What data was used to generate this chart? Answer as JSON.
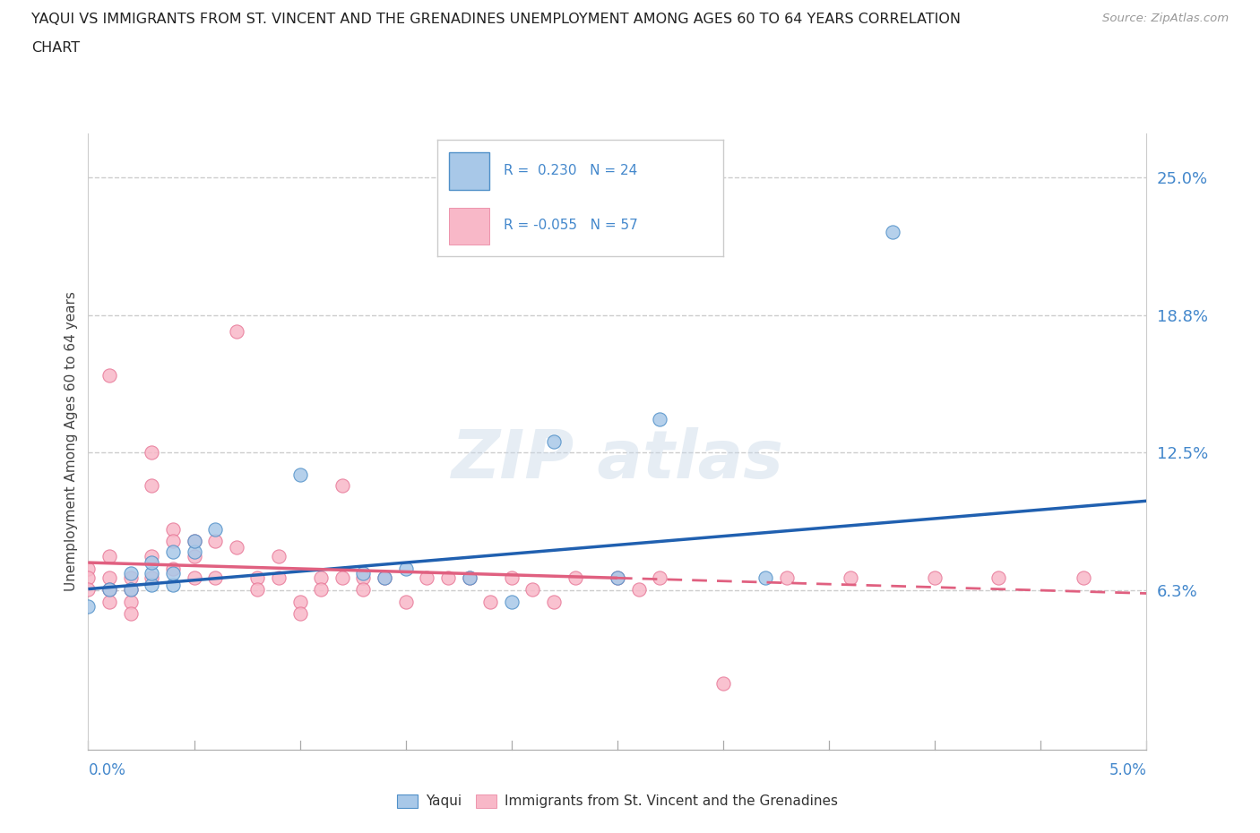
{
  "title_line1": "YAQUI VS IMMIGRANTS FROM ST. VINCENT AND THE GRENADINES UNEMPLOYMENT AMONG AGES 60 TO 64 YEARS CORRELATION",
  "title_line2": "CHART",
  "source": "Source: ZipAtlas.com",
  "ylabel": "Unemployment Among Ages 60 to 64 years",
  "yticks": [
    0.0,
    0.0625,
    0.125,
    0.1875,
    0.25
  ],
  "ytick_labels": [
    "",
    "6.3%",
    "12.5%",
    "18.8%",
    "25.0%"
  ],
  "xlim": [
    0.0,
    0.05
  ],
  "ylim": [
    -0.01,
    0.27
  ],
  "legend_r1": "R =  0.230",
  "legend_n1": "N = 24",
  "legend_r2": "R = -0.055",
  "legend_n2": "N = 57",
  "yaqui_color": "#a8c8e8",
  "immigrants_color": "#f8b8c8",
  "yaqui_edge_color": "#5090c8",
  "immigrants_edge_color": "#e87898",
  "yaqui_line_color": "#2060b0",
  "immigrants_line_color": "#e06080",
  "background_color": "#ffffff",
  "legend_text_color": "#4488cc",
  "yaqui_x": [
    0.0,
    0.001,
    0.002,
    0.002,
    0.003,
    0.003,
    0.003,
    0.004,
    0.004,
    0.004,
    0.005,
    0.005,
    0.006,
    0.01,
    0.013,
    0.014,
    0.015,
    0.018,
    0.02,
    0.022,
    0.025,
    0.027,
    0.032,
    0.038
  ],
  "yaqui_y": [
    0.055,
    0.063,
    0.063,
    0.07,
    0.065,
    0.07,
    0.075,
    0.065,
    0.07,
    0.08,
    0.08,
    0.085,
    0.09,
    0.115,
    0.07,
    0.068,
    0.072,
    0.068,
    0.057,
    0.13,
    0.068,
    0.14,
    0.068,
    0.225
  ],
  "immigrants_x": [
    0.0,
    0.0,
    0.0,
    0.001,
    0.001,
    0.001,
    0.001,
    0.001,
    0.002,
    0.002,
    0.002,
    0.002,
    0.003,
    0.003,
    0.003,
    0.003,
    0.004,
    0.004,
    0.004,
    0.005,
    0.005,
    0.005,
    0.006,
    0.006,
    0.007,
    0.007,
    0.008,
    0.008,
    0.009,
    0.009,
    0.01,
    0.01,
    0.011,
    0.011,
    0.012,
    0.012,
    0.013,
    0.013,
    0.014,
    0.015,
    0.016,
    0.017,
    0.018,
    0.019,
    0.02,
    0.021,
    0.022,
    0.023,
    0.025,
    0.026,
    0.027,
    0.03,
    0.033,
    0.036,
    0.04,
    0.043,
    0.047
  ],
  "immigrants_y": [
    0.072,
    0.068,
    0.063,
    0.16,
    0.078,
    0.068,
    0.063,
    0.057,
    0.068,
    0.063,
    0.057,
    0.052,
    0.125,
    0.11,
    0.078,
    0.068,
    0.09,
    0.085,
    0.072,
    0.085,
    0.078,
    0.068,
    0.085,
    0.068,
    0.18,
    0.082,
    0.068,
    0.063,
    0.078,
    0.068,
    0.057,
    0.052,
    0.068,
    0.063,
    0.11,
    0.068,
    0.068,
    0.063,
    0.068,
    0.057,
    0.068,
    0.068,
    0.068,
    0.057,
    0.068,
    0.063,
    0.057,
    0.068,
    0.068,
    0.063,
    0.068,
    0.02,
    0.068,
    0.068,
    0.068,
    0.068,
    0.068
  ],
  "trend_yaqui_x0": 0.0,
  "trend_yaqui_y0": 0.063,
  "trend_yaqui_x1": 0.05,
  "trend_yaqui_y1": 0.103,
  "trend_imm_x0": 0.0,
  "trend_imm_y0": 0.075,
  "trend_imm_x1": 0.025,
  "trend_imm_y1": 0.068,
  "trend_imm_dash_x0": 0.025,
  "trend_imm_dash_y0": 0.068,
  "trend_imm_dash_x1": 0.05,
  "trend_imm_dash_y1": 0.061
}
